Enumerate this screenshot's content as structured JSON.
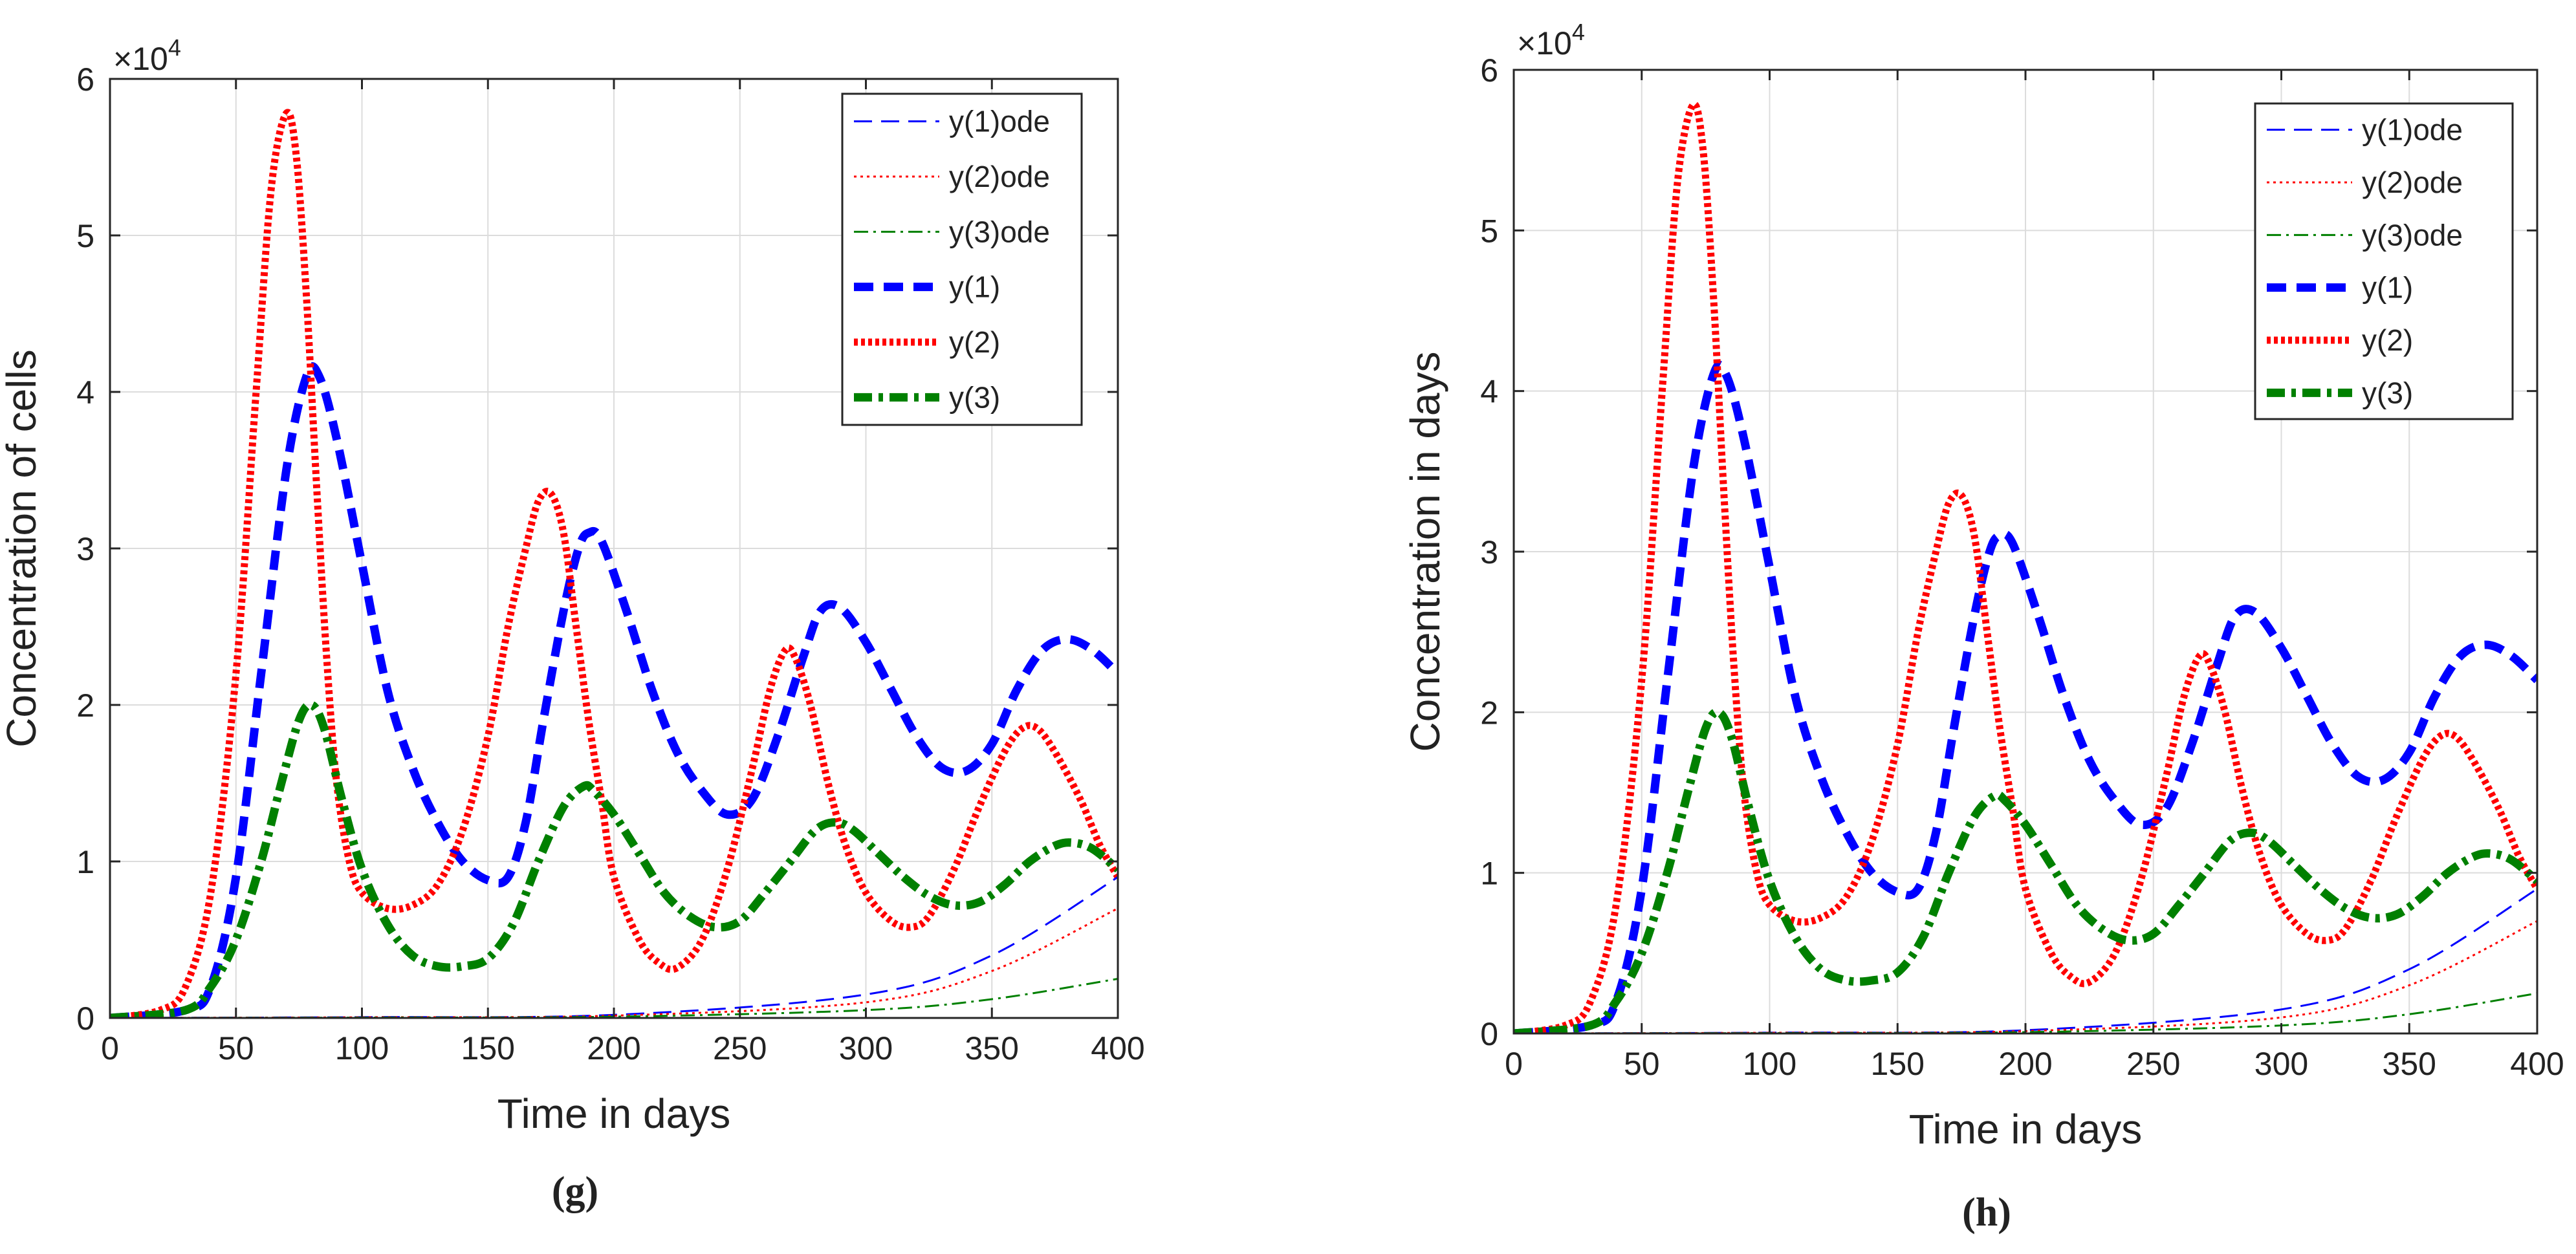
{
  "chart_data": [
    {
      "type": "line",
      "panel_label": "(g)",
      "xlabel": "Time in days",
      "ylabel": "Concentration of cells",
      "scale_label": "×10",
      "scale_exp": "4",
      "xlim": [
        0,
        400
      ],
      "ylim": [
        0,
        6
      ],
      "xticks": [
        0,
        50,
        100,
        150,
        200,
        250,
        300,
        350,
        400
      ],
      "yticks": [
        0,
        1,
        2,
        3,
        4,
        5,
        6
      ],
      "grid": true,
      "legend_position": "top-right",
      "series": [
        {
          "name": "y(1)ode",
          "color": "#0000ff",
          "style": "dash-thin",
          "key": "y1ode"
        },
        {
          "name": "y(2)ode",
          "color": "#ff0000",
          "style": "dot-thin",
          "key": "y2ode"
        },
        {
          "name": "y(3)ode",
          "color": "#008000",
          "style": "dashdot-thin",
          "key": "y3ode"
        },
        {
          "name": "y(1)",
          "color": "#0000ff",
          "style": "dash-thick",
          "key": "y1"
        },
        {
          "name": "y(2)",
          "color": "#ff0000",
          "style": "dot-thick",
          "key": "y2"
        },
        {
          "name": "y(3)",
          "color": "#008000",
          "style": "dashdot-thick",
          "key": "y3"
        }
      ]
    },
    {
      "type": "line",
      "panel_label": "(h)",
      "xlabel": "Time in days",
      "ylabel": "Concentration in days",
      "scale_label": "×10",
      "scale_exp": "4",
      "xlim": [
        0,
        400
      ],
      "ylim": [
        0,
        6
      ],
      "xticks": [
        0,
        50,
        100,
        150,
        200,
        250,
        300,
        350,
        400
      ],
      "yticks": [
        0,
        1,
        2,
        3,
        4,
        5,
        6
      ],
      "grid": true,
      "legend_position": "top-right",
      "series": [
        {
          "name": "y(1)ode",
          "color": "#0000ff",
          "style": "dash-thin",
          "key": "y1ode"
        },
        {
          "name": "y(2)ode",
          "color": "#ff0000",
          "style": "dot-thin",
          "key": "y2ode"
        },
        {
          "name": "y(3)ode",
          "color": "#008000",
          "style": "dashdot-thin",
          "key": "y3ode"
        },
        {
          "name": "y(1)",
          "color": "#0000ff",
          "style": "dash-thick",
          "key": "y1"
        },
        {
          "name": "y(2)",
          "color": "#ff0000",
          "style": "dot-thick",
          "key": "y2"
        },
        {
          "name": "y(3)",
          "color": "#008000",
          "style": "dashdot-thick",
          "key": "y3"
        }
      ]
    }
  ],
  "series_points": {
    "y1ode": [
      [
        0,
        0
      ],
      [
        100,
        0.005
      ],
      [
        200,
        0.02
      ],
      [
        300,
        0.15
      ],
      [
        350,
        0.4
      ],
      [
        400,
        0.9
      ]
    ],
    "y2ode": [
      [
        0,
        0
      ],
      [
        100,
        0.004
      ],
      [
        200,
        0.015
      ],
      [
        300,
        0.1
      ],
      [
        350,
        0.3
      ],
      [
        400,
        0.7
      ]
    ],
    "y3ode": [
      [
        0,
        0
      ],
      [
        100,
        0.002
      ],
      [
        200,
        0.008
      ],
      [
        300,
        0.05
      ],
      [
        350,
        0.12
      ],
      [
        400,
        0.25
      ]
    ],
    "y1": [
      [
        0,
        0
      ],
      [
        30,
        0.05
      ],
      [
        40,
        0.2
      ],
      [
        50,
        0.9
      ],
      [
        60,
        2.2
      ],
      [
        70,
        3.5
      ],
      [
        78,
        4.1
      ],
      [
        83,
        4.1
      ],
      [
        90,
        3.7
      ],
      [
        100,
        2.9
      ],
      [
        110,
        2.1
      ],
      [
        120,
        1.6
      ],
      [
        130,
        1.25
      ],
      [
        140,
        1.0
      ],
      [
        150,
        0.88
      ],
      [
        158,
        0.9
      ],
      [
        165,
        1.25
      ],
      [
        172,
        1.9
      ],
      [
        180,
        2.6
      ],
      [
        186,
        3.0
      ],
      [
        190,
        3.1
      ],
      [
        195,
        3.05
      ],
      [
        205,
        2.6
      ],
      [
        215,
        2.1
      ],
      [
        225,
        1.7
      ],
      [
        235,
        1.45
      ],
      [
        245,
        1.3
      ],
      [
        255,
        1.4
      ],
      [
        265,
        1.8
      ],
      [
        275,
        2.3
      ],
      [
        282,
        2.6
      ],
      [
        290,
        2.62
      ],
      [
        300,
        2.4
      ],
      [
        310,
        2.1
      ],
      [
        320,
        1.8
      ],
      [
        330,
        1.6
      ],
      [
        340,
        1.58
      ],
      [
        350,
        1.75
      ],
      [
        360,
        2.1
      ],
      [
        370,
        2.35
      ],
      [
        380,
        2.42
      ],
      [
        390,
        2.35
      ],
      [
        400,
        2.2
      ]
    ],
    "y2": [
      [
        0,
        0
      ],
      [
        20,
        0.05
      ],
      [
        30,
        0.2
      ],
      [
        40,
        0.8
      ],
      [
        50,
        2.2
      ],
      [
        58,
        4.0
      ],
      [
        64,
        5.3
      ],
      [
        70,
        5.78
      ],
      [
        74,
        5.5
      ],
      [
        78,
        4.6
      ],
      [
        82,
        3.4
      ],
      [
        86,
        2.3
      ],
      [
        90,
        1.5
      ],
      [
        95,
        1.0
      ],
      [
        100,
        0.8
      ],
      [
        110,
        0.7
      ],
      [
        120,
        0.72
      ],
      [
        130,
        0.85
      ],
      [
        140,
        1.2
      ],
      [
        150,
        1.8
      ],
      [
        158,
        2.5
      ],
      [
        165,
        3.0
      ],
      [
        170,
        3.3
      ],
      [
        175,
        3.35
      ],
      [
        180,
        3.1
      ],
      [
        185,
        2.5
      ],
      [
        190,
        1.9
      ],
      [
        195,
        1.4
      ],
      [
        200,
        0.9
      ],
      [
        210,
        0.5
      ],
      [
        218,
        0.35
      ],
      [
        225,
        0.32
      ],
      [
        235,
        0.5
      ],
      [
        245,
        0.95
      ],
      [
        255,
        1.6
      ],
      [
        262,
        2.1
      ],
      [
        268,
        2.35
      ],
      [
        272,
        2.3
      ],
      [
        278,
        2.0
      ],
      [
        285,
        1.5
      ],
      [
        292,
        1.1
      ],
      [
        300,
        0.8
      ],
      [
        310,
        0.62
      ],
      [
        318,
        0.58
      ],
      [
        325,
        0.65
      ],
      [
        335,
        0.95
      ],
      [
        345,
        1.35
      ],
      [
        355,
        1.7
      ],
      [
        362,
        1.85
      ],
      [
        368,
        1.85
      ],
      [
        375,
        1.7
      ],
      [
        385,
        1.4
      ],
      [
        393,
        1.1
      ],
      [
        400,
        0.9
      ]
    ],
    "y3": [
      [
        0,
        0
      ],
      [
        30,
        0.05
      ],
      [
        40,
        0.2
      ],
      [
        50,
        0.5
      ],
      [
        60,
        1.0
      ],
      [
        68,
        1.5
      ],
      [
        75,
        1.9
      ],
      [
        80,
        2.0
      ],
      [
        85,
        1.85
      ],
      [
        92,
        1.4
      ],
      [
        100,
        0.95
      ],
      [
        110,
        0.6
      ],
      [
        120,
        0.4
      ],
      [
        130,
        0.33
      ],
      [
        140,
        0.33
      ],
      [
        150,
        0.38
      ],
      [
        160,
        0.6
      ],
      [
        170,
        1.0
      ],
      [
        180,
        1.35
      ],
      [
        188,
        1.48
      ],
      [
        192,
        1.45
      ],
      [
        200,
        1.3
      ],
      [
        210,
        1.05
      ],
      [
        220,
        0.8
      ],
      [
        230,
        0.65
      ],
      [
        240,
        0.58
      ],
      [
        250,
        0.62
      ],
      [
        260,
        0.8
      ],
      [
        270,
        1.0
      ],
      [
        280,
        1.2
      ],
      [
        288,
        1.25
      ],
      [
        295,
        1.2
      ],
      [
        305,
        1.05
      ],
      [
        315,
        0.9
      ],
      [
        325,
        0.78
      ],
      [
        335,
        0.72
      ],
      [
        345,
        0.74
      ],
      [
        355,
        0.85
      ],
      [
        365,
        1.0
      ],
      [
        375,
        1.1
      ],
      [
        382,
        1.12
      ],
      [
        390,
        1.08
      ],
      [
        400,
        0.95
      ]
    ]
  }
}
